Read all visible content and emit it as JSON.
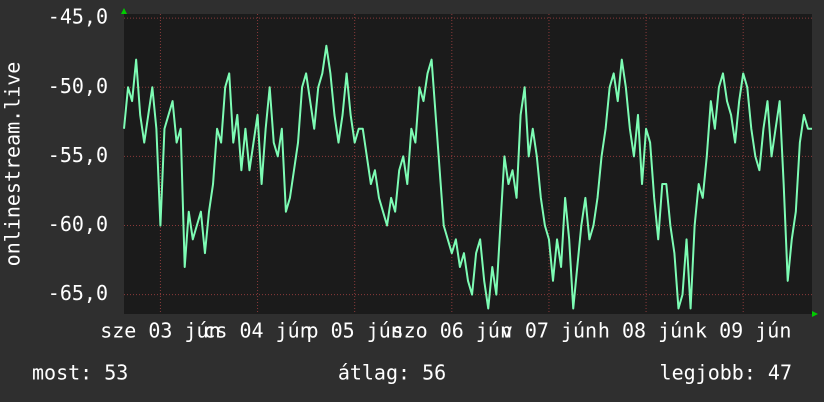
{
  "chart_data": {
    "type": "line",
    "y_label": "onlinestream.live",
    "xlim": [
      0,
      170
    ],
    "xticks": [
      {
        "value": 9,
        "label": "sze 03 jún"
      },
      {
        "value": 33,
        "label": "cs 04 jún"
      },
      {
        "value": 57,
        "label": "p 05 jún"
      },
      {
        "value": 81,
        "label": "szo 06 jún"
      },
      {
        "value": 105,
        "label": "v 07 jún"
      },
      {
        "value": 129,
        "label": "h 08 jún"
      },
      {
        "value": 153,
        "label": "k 09 jún"
      }
    ],
    "ylim": [
      -66.4,
      -44.7
    ],
    "yticks": [
      {
        "value": -45,
        "label": "-45,0"
      },
      {
        "value": -50,
        "label": "-50,0"
      },
      {
        "value": -55,
        "label": "-55,0"
      },
      {
        "value": -60,
        "label": "-60,0"
      },
      {
        "value": -65,
        "label": "-65,0"
      }
    ],
    "grid": true,
    "series": [
      {
        "color": "#7dfcb4",
        "values": [
          -53,
          -50,
          -51,
          -48,
          -52,
          -54,
          -52,
          -50,
          -53,
          -60,
          -53,
          -52,
          -51,
          -54,
          -53,
          -63,
          -59,
          -61,
          -60,
          -59,
          -62,
          -59,
          -57,
          -53,
          -54,
          -50,
          -49,
          -54,
          -52,
          -56,
          -53,
          -56,
          -54,
          -52,
          -57,
          -53,
          -50,
          -54,
          -55,
          -53,
          -59,
          -58,
          -56,
          -54,
          -50,
          -49,
          -51,
          -53,
          -50,
          -49,
          -47,
          -49,
          -52,
          -54,
          -52,
          -49,
          -52,
          -54,
          -53,
          -53,
          -55,
          -57,
          -56,
          -58,
          -59,
          -60,
          -58,
          -59,
          -56,
          -55,
          -57,
          -53,
          -54,
          -50,
          -51,
          -49,
          -48,
          -52,
          -56,
          -60,
          -61,
          -62,
          -61,
          -63,
          -62,
          -64,
          -65,
          -62,
          -61,
          -64,
          -66,
          -63,
          -65,
          -60,
          -55,
          -57,
          -56,
          -58,
          -52,
          -50,
          -55,
          -53,
          -55,
          -58,
          -60,
          -61,
          -64,
          -61,
          -63,
          -58,
          -61,
          -66,
          -63,
          -60,
          -58,
          -61,
          -60,
          -58,
          -55,
          -53,
          -50,
          -49,
          -51,
          -48,
          -50,
          -53,
          -55,
          -52,
          -57,
          -53,
          -54,
          -58,
          -61,
          -57,
          -57,
          -60,
          -62,
          -66,
          -65,
          -61,
          -66,
          -60,
          -57,
          -58,
          -55,
          -51,
          -53,
          -50,
          -49,
          -51,
          -52,
          -54,
          -51,
          -49,
          -50,
          -53,
          -55,
          -56,
          -53,
          -51,
          -55,
          -53,
          -51,
          -57,
          -64,
          -61,
          -59,
          -54,
          -52,
          -53,
          -53
        ]
      }
    ],
    "footer": [
      "most: 53",
      "átlag: 56",
      "legjobb: 47"
    ]
  }
}
